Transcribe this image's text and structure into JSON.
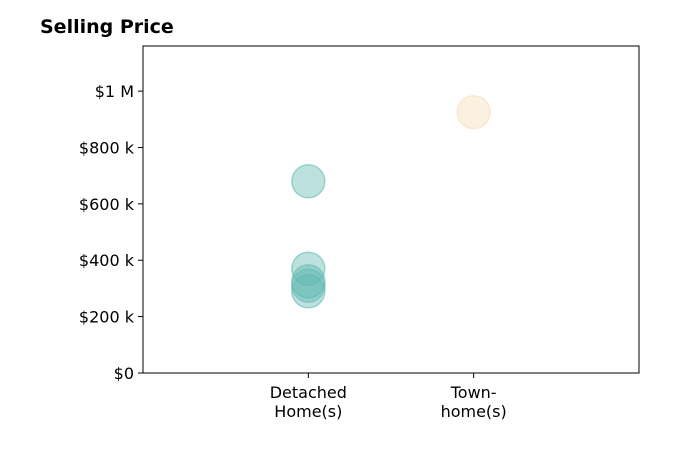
{
  "chart_data": {
    "type": "scatter",
    "title": "Selling Price",
    "xlabel": "",
    "ylabel": "",
    "categories": [
      [
        "Detached",
        "Home(s)"
      ],
      [
        "Town-",
        "home(s)"
      ]
    ],
    "y_ticks": [
      {
        "value": 0,
        "label": "$0"
      },
      {
        "value": 200000,
        "label": "$200 k"
      },
      {
        "value": 400000,
        "label": "$400 k"
      },
      {
        "value": 600000,
        "label": "$600 k"
      },
      {
        "value": 800000,
        "label": "$800 k"
      },
      {
        "value": 1000000,
        "label": "$1 M"
      }
    ],
    "ylim": [
      0,
      1160000
    ],
    "x_range": [
      -1,
      2
    ],
    "grid": false,
    "legend": "none",
    "series": [
      {
        "category_index": 0,
        "color": "#5fb8b0",
        "values": [
          290000,
          310000,
          325000,
          370000,
          680000
        ]
      },
      {
        "category_index": 1,
        "color": "#f2deb5",
        "values": [
          925000
        ]
      }
    ]
  }
}
